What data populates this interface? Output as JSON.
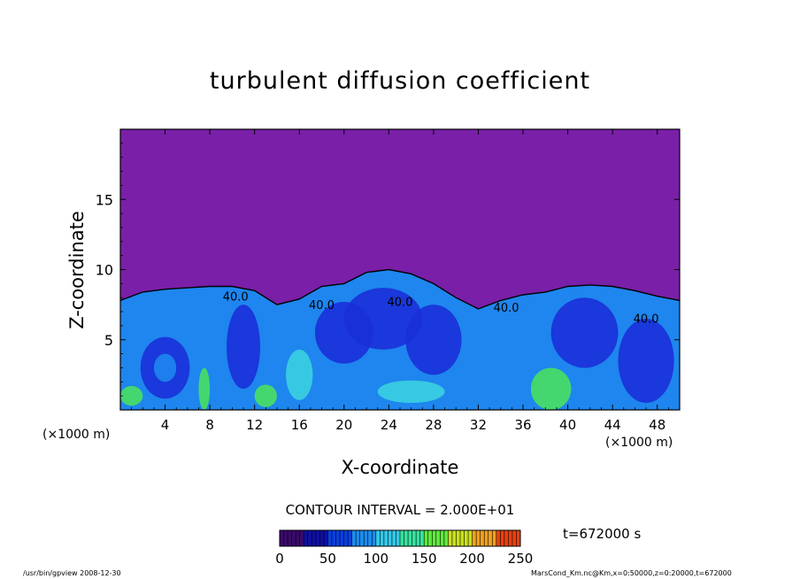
{
  "chart_data": {
    "type": "heatmap",
    "title": "turbulent diffusion coefficient",
    "xlabel": "X-coordinate",
    "ylabel": "Z-coordinate",
    "x_unit": "(×1000 m)",
    "xlim": [
      0,
      50
    ],
    "ylim": [
      0,
      20
    ],
    "x_ticks": [
      4,
      8,
      12,
      16,
      20,
      24,
      28,
      32,
      36,
      40,
      44,
      48
    ],
    "y_ticks": [
      5,
      10,
      15
    ],
    "contour_interval_text": "CONTOUR INTERVAL = 2.000E+01",
    "contour_labels": [
      {
        "x": 10.3,
        "z": 7.8,
        "text": "40.0"
      },
      {
        "x": 18.0,
        "z": 7.2,
        "text": "40.0"
      },
      {
        "x": 25.0,
        "z": 7.4,
        "text": "40.0"
      },
      {
        "x": 34.5,
        "z": 7.0,
        "text": "40.0"
      },
      {
        "x": 47.0,
        "z": 6.2,
        "text": "40.0"
      }
    ],
    "boundary_layer_top_z": [
      [
        0,
        7.8
      ],
      [
        2,
        8.4
      ],
      [
        4,
        8.6
      ],
      [
        6,
        8.7
      ],
      [
        8,
        8.8
      ],
      [
        10,
        8.8
      ],
      [
        12,
        8.5
      ],
      [
        14,
        7.5
      ],
      [
        16,
        7.9
      ],
      [
        18,
        8.8
      ],
      [
        20,
        9.0
      ],
      [
        22,
        9.8
      ],
      [
        24,
        10.0
      ],
      [
        26,
        9.7
      ],
      [
        28,
        9.0
      ],
      [
        30,
        8.0
      ],
      [
        32,
        7.2
      ],
      [
        34,
        7.8
      ],
      [
        36,
        8.2
      ],
      [
        38,
        8.4
      ],
      [
        40,
        8.8
      ],
      [
        42,
        8.9
      ],
      [
        44,
        8.8
      ],
      [
        46,
        8.5
      ],
      [
        48,
        8.1
      ],
      [
        50,
        7.8
      ]
    ],
    "background_value": 0,
    "colorbar": {
      "min": 0,
      "max": 250,
      "ticks": [
        0,
        50,
        100,
        150,
        200,
        250
      ],
      "colors": [
        "#3a0a6a",
        "#1010a0",
        "#0a40e0",
        "#1c8cf0",
        "#34c8e8",
        "#38e0a0",
        "#60e840",
        "#c8e020",
        "#f0a020",
        "#e84010"
      ]
    },
    "colors": {
      "background": "#7a1fa8",
      "low": "#1a30d8",
      "mid": "#1e86ee",
      "high": "#3ad0e0",
      "peak": "#48e060"
    }
  },
  "annotations": {
    "time": "t=672000 s",
    "footer_left": "/usr/bin/gpview   2008-12-30",
    "footer_right": "MarsCond_Km.nc@Km,x=0:50000,z=0:20000,t=672000"
  }
}
